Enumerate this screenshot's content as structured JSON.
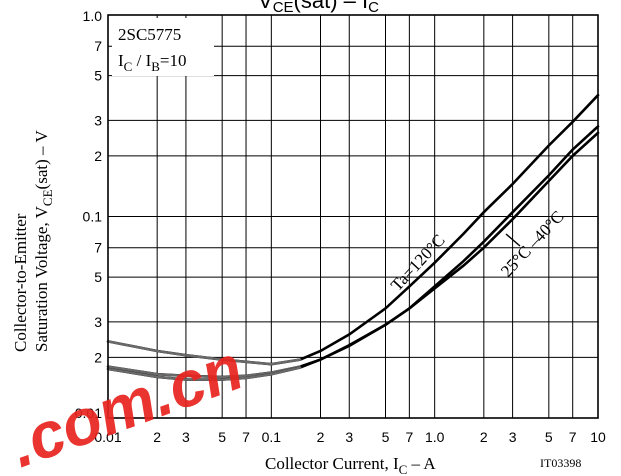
{
  "chart_data": {
    "type": "line",
    "title": "VCE(sat) – IC",
    "title_parts": {
      "main": "V",
      "sub1": "CE",
      "paren": "(sat)",
      "dash": " – I",
      "sub2": "C"
    },
    "xlabel_parts": {
      "main": "Collector Current, I",
      "sub": "C",
      "tail": "  –  A"
    },
    "ylabel_line1": "Collector-to-Emitter",
    "ylabel_parts": {
      "main": "Saturation Voltage, V",
      "sub": "CE",
      "paren": "(sat)",
      "tail": "  –  V"
    },
    "x_scale": "log",
    "y_scale": "log",
    "xlim": [
      0.01,
      10
    ],
    "ylim": [
      0.01,
      1.0
    ],
    "grid": true,
    "x_tick_labels": [
      {
        "v": 0.01,
        "t": "0.01"
      },
      {
        "v": 0.02,
        "t": "2"
      },
      {
        "v": 0.03,
        "t": "3"
      },
      {
        "v": 0.05,
        "t": "5"
      },
      {
        "v": 0.07,
        "t": "7"
      },
      {
        "v": 0.1,
        "t": "0.1"
      },
      {
        "v": 0.2,
        "t": "2"
      },
      {
        "v": 0.3,
        "t": "3"
      },
      {
        "v": 0.5,
        "t": "5"
      },
      {
        "v": 0.7,
        "t": "7"
      },
      {
        "v": 1.0,
        "t": "1.0"
      },
      {
        "v": 2,
        "t": "2"
      },
      {
        "v": 3,
        "t": "3"
      },
      {
        "v": 5,
        "t": "5"
      },
      {
        "v": 7,
        "t": "7"
      },
      {
        "v": 10,
        "t": "10"
      }
    ],
    "y_tick_labels": [
      {
        "v": 1.0,
        "t": "1.0"
      },
      {
        "v": 0.7,
        "t": "7"
      },
      {
        "v": 0.5,
        "t": "5"
      },
      {
        "v": 0.3,
        "t": "3"
      },
      {
        "v": 0.2,
        "t": "2"
      },
      {
        "v": 0.1,
        "t": "0.1"
      },
      {
        "v": 0.07,
        "t": "7"
      },
      {
        "v": 0.05,
        "t": "5"
      },
      {
        "v": 0.03,
        "t": "3"
      },
      {
        "v": 0.02,
        "t": "2"
      },
      {
        "v": 0.01,
        "t": "0.01"
      }
    ],
    "series": [
      {
        "name": "Ta=120°C",
        "x": [
          0.01,
          0.02,
          0.03,
          0.05,
          0.07,
          0.1,
          0.15,
          0.2,
          0.3,
          0.5,
          0.7,
          1.0,
          1.5,
          2,
          3,
          5,
          7,
          10
        ],
        "y": [
          0.024,
          0.0215,
          0.0205,
          0.0195,
          0.019,
          0.0185,
          0.0195,
          0.0215,
          0.026,
          0.035,
          0.045,
          0.059,
          0.082,
          0.105,
          0.145,
          0.225,
          0.295,
          0.4
        ]
      },
      {
        "name": "25°C",
        "x": [
          0.01,
          0.02,
          0.03,
          0.05,
          0.07,
          0.1,
          0.15,
          0.2,
          0.3,
          0.5,
          0.7,
          1.0,
          1.5,
          2,
          3,
          5,
          7,
          10
        ],
        "y": [
          0.018,
          0.0165,
          0.0162,
          0.016,
          0.0162,
          0.0168,
          0.018,
          0.0195,
          0.023,
          0.029,
          0.035,
          0.045,
          0.06,
          0.075,
          0.105,
          0.16,
          0.215,
          0.28
        ]
      },
      {
        "name": "–40°C",
        "x": [
          0.01,
          0.02,
          0.03,
          0.05,
          0.07,
          0.1,
          0.15,
          0.2,
          0.3,
          0.5,
          0.7,
          1.0,
          1.5,
          2,
          3,
          5,
          7,
          10
        ],
        "y": [
          0.0175,
          0.016,
          0.0155,
          0.0155,
          0.0158,
          0.0165,
          0.0178,
          0.0195,
          0.0228,
          0.029,
          0.035,
          0.044,
          0.057,
          0.07,
          0.097,
          0.15,
          0.2,
          0.26
        ]
      }
    ],
    "annotations": {
      "part": "2SC5775",
      "cond_parts": {
        "a": "I",
        "a_sub": "C",
        "mid": " / I",
        "b_sub": "B",
        "tail": "=10"
      },
      "ta_label": "Ta=120°C",
      "low_label": "25°C –40°C",
      "code": "IT03398"
    }
  },
  "watermark": {
    "text": ".com.cn",
    "color": "#e8231e"
  }
}
